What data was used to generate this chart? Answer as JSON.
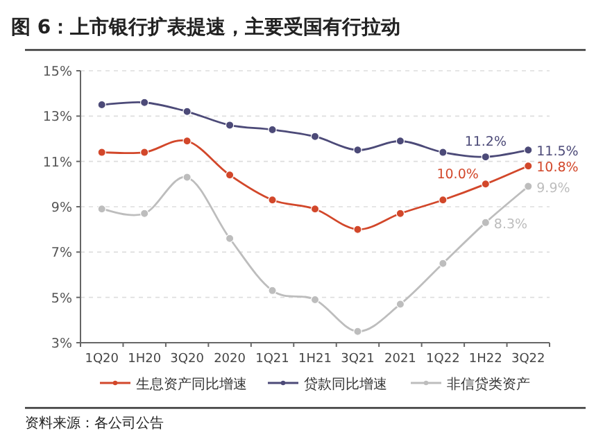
{
  "chart_data": {
    "type": "line",
    "title": "图 6：上市银行扩表提速，主要受国有行拉动",
    "categories": [
      "1Q20",
      "1H20",
      "3Q20",
      "2020",
      "1Q21",
      "1H21",
      "3Q21",
      "2021",
      "1Q22",
      "1H22",
      "3Q22"
    ],
    "series": [
      {
        "name": "生息资产同比增速",
        "color": "#d2472a",
        "values": [
          11.4,
          11.4,
          11.9,
          10.4,
          9.3,
          8.9,
          8.0,
          8.7,
          9.3,
          10.0,
          10.8
        ],
        "value_labels": [
          null,
          null,
          null,
          null,
          null,
          null,
          null,
          null,
          null,
          "10.0%",
          "10.8%"
        ]
      },
      {
        "name": "贷款同比增速",
        "color": "#4c4a78",
        "values": [
          13.5,
          13.6,
          13.2,
          12.6,
          12.4,
          12.1,
          11.5,
          11.9,
          11.4,
          11.2,
          11.5
        ],
        "value_labels": [
          null,
          null,
          null,
          null,
          null,
          null,
          null,
          null,
          null,
          "11.2%",
          "11.5%"
        ]
      },
      {
        "name": "非信贷类资产",
        "color": "#bdbdbd",
        "values": [
          8.9,
          8.7,
          10.3,
          7.6,
          5.3,
          4.9,
          3.5,
          4.7,
          6.5,
          8.3,
          9.9
        ],
        "value_labels": [
          null,
          null,
          null,
          null,
          null,
          null,
          null,
          null,
          null,
          "8.3%",
          "9.9%"
        ]
      }
    ],
    "ylim": [
      3,
      15
    ],
    "yticks": [
      {
        "value": 3,
        "label": "3%"
      },
      {
        "value": 5,
        "label": "5%"
      },
      {
        "value": 7,
        "label": "7%"
      },
      {
        "value": 9,
        "label": "9%"
      },
      {
        "value": 11,
        "label": "11%"
      },
      {
        "value": 13,
        "label": "13%"
      },
      {
        "value": 15,
        "label": "15%"
      }
    ],
    "grid": "y",
    "legend": "bottom",
    "marker": "circle",
    "annotations": [
      "资料来源：各公司公告"
    ]
  }
}
